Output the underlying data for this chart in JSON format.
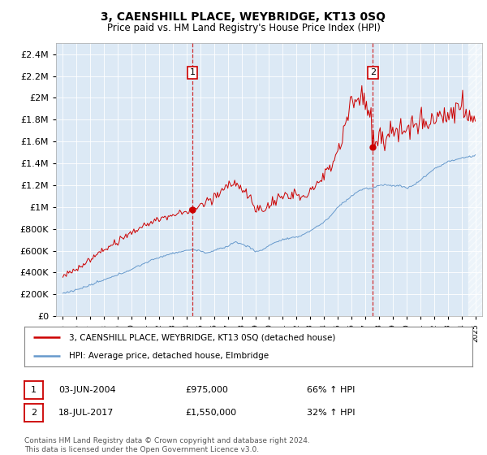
{
  "title": "3, CAENSHILL PLACE, WEYBRIDGE, KT13 0SQ",
  "subtitle": "Price paid vs. HM Land Registry's House Price Index (HPI)",
  "plot_bg_color": "#dce9f5",
  "legend_label_red": "3, CAENSHILL PLACE, WEYBRIDGE, KT13 0SQ (detached house)",
  "legend_label_blue": "HPI: Average price, detached house, Elmbridge",
  "sale1_date": "03-JUN-2004",
  "sale1_price": "£975,000",
  "sale1_hpi": "66% ↑ HPI",
  "sale2_date": "18-JUL-2017",
  "sale2_price": "£1,550,000",
  "sale2_hpi": "32% ↑ HPI",
  "footnote": "Contains HM Land Registry data © Crown copyright and database right 2024.\nThis data is licensed under the Open Government Licence v3.0.",
  "ylim_bottom": 0,
  "ylim_top": 2500000,
  "red_color": "#cc0000",
  "blue_color": "#6699cc",
  "marker1_x_year": 2004.42,
  "marker1_y": 975000,
  "marker2_x_year": 2017.54,
  "marker2_y": 1550000,
  "yticks": [
    0,
    200000,
    400000,
    600000,
    800000,
    1000000,
    1200000,
    1400000,
    1600000,
    1800000,
    2000000,
    2200000,
    2400000
  ],
  "xlim_left": 1994.5,
  "xlim_right": 2025.5
}
